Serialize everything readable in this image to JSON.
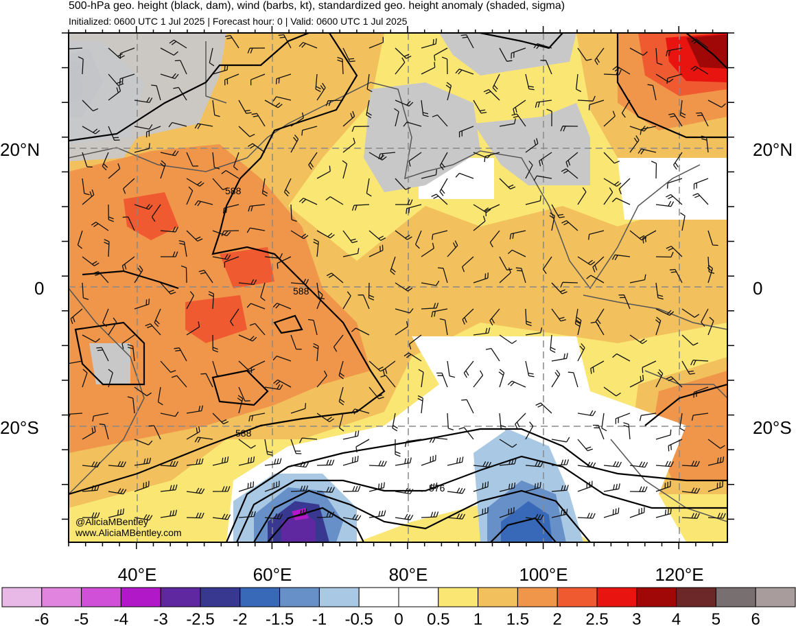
{
  "header": {
    "title": "500-hPa geo. height (black, dam), wind (barbs, kt), standardized geo. height anomaly (shaded, sigma)",
    "subtitle": "Initialized: 0600 UTC 1 Jul 2025 | Forecast hour: 0 | Valid: 0600 UTC 1 Jul 2025"
  },
  "map": {
    "lat_labels_left": [
      "20°N",
      "0",
      "20°S"
    ],
    "lat_labels_right": [
      "20°N",
      "0",
      "20°S"
    ],
    "lon_labels": [
      "40°E",
      "60°E",
      "80°E",
      "100°E",
      "120°E"
    ],
    "contour_labels": [
      "588",
      "588",
      "588",
      "576"
    ],
    "watermark": [
      "@AliciaMBentley",
      "www.AliciaMBentley.com"
    ]
  },
  "colorbar": {
    "labels": [
      "-6",
      "-5",
      "-4",
      "-3",
      "-2.5",
      "-2",
      "-1.5",
      "-1",
      "-0.5",
      "0",
      "0.5",
      "1",
      "1.5",
      "2",
      "2.5",
      "3",
      "4",
      "5",
      "6"
    ],
    "colors": [
      "#e8b8e6",
      "#e084e0",
      "#d050d8",
      "#b018c8",
      "#6028a0",
      "#383890",
      "#3868b8",
      "#6890c8",
      "#a8c8e4",
      "#ffffff",
      "#ffffff",
      "#fae673",
      "#f2c05c",
      "#f0964a",
      "#f05a30",
      "#e81410",
      "#a00808",
      "#6c2828",
      "#787070",
      "#a89c9c"
    ]
  }
}
